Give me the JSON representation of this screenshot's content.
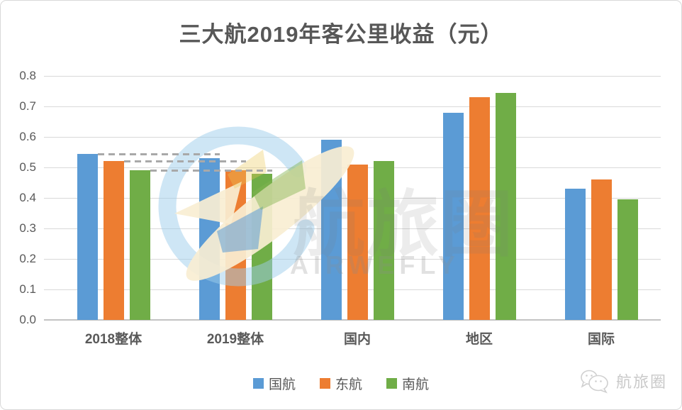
{
  "chart_data": {
    "type": "bar",
    "title": "三大航2019年客公里收益（元）",
    "categories": [
      "2018整体",
      "2019整体",
      "国内",
      "地区",
      "国际"
    ],
    "series": [
      {
        "name": "国航",
        "color": "#5B9BD5",
        "values": [
          0.545,
          0.53,
          0.59,
          0.68,
          0.43
        ]
      },
      {
        "name": "东航",
        "color": "#ED7D31",
        "values": [
          0.52,
          0.49,
          0.51,
          0.73,
          0.46
        ]
      },
      {
        "name": "南航",
        "color": "#70AD47",
        "values": [
          0.49,
          0.48,
          0.52,
          0.745,
          0.395
        ]
      }
    ],
    "ylim": [
      0,
      0.8
    ],
    "ytick_labels": [
      "0.0",
      "0.1",
      "0.2",
      "0.3",
      "0.4",
      "0.5",
      "0.6",
      "0.7",
      "0.8"
    ],
    "grid": true,
    "legend_position": "bottom",
    "reference_lines": [
      {
        "series_index": 0,
        "value": 0.545,
        "from_category": 0,
        "to_category": 1,
        "style": "dashed"
      },
      {
        "series_index": 1,
        "value": 0.52,
        "from_category": 0,
        "to_category": 1,
        "style": "dashed"
      },
      {
        "series_index": 2,
        "value": 0.49,
        "from_category": 0,
        "to_category": 1,
        "style": "dashed"
      }
    ]
  },
  "watermark": {
    "logo": "airwefly-plane-circle-logo",
    "text": "航旅圈",
    "subtext": "AIRWEFLY"
  },
  "brand": {
    "icon": "wechat-icon",
    "text": "航旅圈"
  },
  "colors": {
    "title_text": "#575757",
    "axis_text": "#595959",
    "gridline": "#d9d9d9",
    "dashed_line": "#a9a9a9"
  }
}
